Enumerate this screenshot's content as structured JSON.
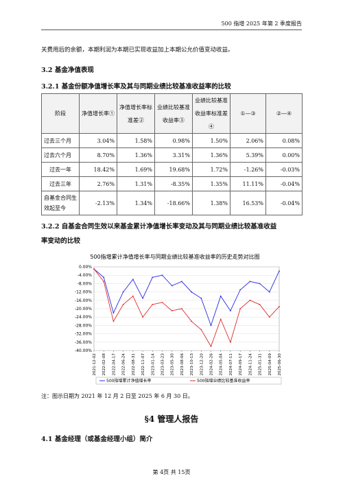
{
  "header": {
    "title": "500 指增 2025 年第 2 季度报告"
  },
  "intro_text": "关费用后的余额，本期利润为本期已实现收益加上本期公允价值变动收益。",
  "section_3_2": "3.2 基金净值表现",
  "section_3_2_1": "3.2.1 基金份额净值增长率及其与同期业绩比较基准收益率的比较",
  "table": {
    "headers": [
      "阶段",
      "净值增长率①",
      "净值增长率标准差②",
      "业绩比较基准收益率③",
      "业绩比较基准收益率标准差④",
      "①—③",
      "②—④"
    ],
    "rows": [
      {
        "stage": "过去三个月",
        "v1": "3.04%",
        "v2": "1.58%",
        "v3": "0.98%",
        "v4": "1.50%",
        "v5": "2.06%",
        "v6": "0.08%"
      },
      {
        "stage": "过去六个月",
        "v1": "8.70%",
        "v2": "1.36%",
        "v3": "3.31%",
        "v4": "1.36%",
        "v5": "5.39%",
        "v6": "0.00%"
      },
      {
        "stage": "过去一年",
        "v1": "18.42%",
        "v2": "1.69%",
        "v3": "19.68%",
        "v4": "1.72%",
        "v5": "-1.26%",
        "v6": "-0.03%"
      },
      {
        "stage": "过去三年",
        "v1": "2.76%",
        "v2": "1.31%",
        "v3": "-8.35%",
        "v4": "1.35%",
        "v5": "11.11%",
        "v6": "-0.04%"
      },
      {
        "stage": "自基金合同生效起至今",
        "v1": "-2.13%",
        "v2": "1.34%",
        "v3": "-18.66%",
        "v4": "1.38%",
        "v5": "16.53%",
        "v6": "-0.04%"
      }
    ]
  },
  "section_3_2_2_line1": "3.2.2 自基金合同生效以来基金累计净值增长率变动及其与同期业绩比较基准收益",
  "section_3_2_2_line2": "率变动的比较",
  "chart_data": {
    "type": "line",
    "title": "500指增累计净值增长率与同期业绩比较基准收益率的历史走势对比图",
    "x": [
      "2021-12-02",
      "2022-02-08",
      "2022-04-17",
      "2022-06-24",
      "2022-08-31",
      "2022-11-07",
      "2023-01-14",
      "2023-03-23",
      "2023-05-30",
      "2023-08-06",
      "2023-10-13",
      "2023-12-20",
      "2024-02-26",
      "2024-05-04",
      "2024-07-11",
      "2024-09-17",
      "2024-11-24",
      "2025-01-31",
      "2025-04-09",
      "2025-06-30"
    ],
    "series": [
      {
        "name": "500指增累计净值增长率",
        "color": "#2a2ae0",
        "values": [
          -1,
          -5,
          -22,
          -12,
          -6,
          -15,
          -5,
          -4,
          -9,
          -7,
          -12,
          -15,
          -28,
          -14,
          -21,
          -11,
          -7,
          -8,
          -12,
          -2
        ]
      },
      {
        "name": "500指增业绩比较基准收益率",
        "color": "#e02a2a",
        "values": [
          -1,
          -7,
          -26,
          -18,
          -14,
          -24,
          -18,
          -17,
          -21,
          -20,
          -26,
          -30,
          -38,
          -25,
          -36,
          -20,
          -16,
          -18,
          -24,
          -19
        ]
      }
    ],
    "yticks": [
      "0.00%",
      "-4.00%",
      "-8.00%",
      "-12.00%",
      "-16.00%",
      "-20.00%",
      "-24.00%",
      "-28.00%",
      "-32.00%",
      "-36.00%",
      "-40.00%"
    ],
    "ylim": [
      -40,
      0
    ]
  },
  "note": "注：图示日期为 2021 年 12 月 2 日至 2025 年 6 月 30 日。",
  "section_4": "§4  管理人报告",
  "section_4_1": "4.1 基金经理（或基金经理小组）简介",
  "footer": "第 4页 共 15页"
}
